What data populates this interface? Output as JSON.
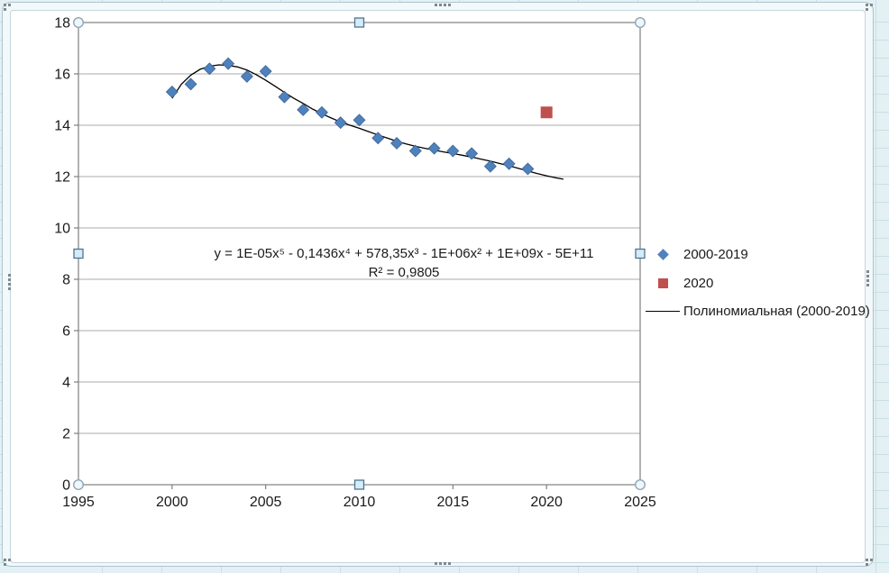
{
  "app": {
    "context": "spreadsheet-chart-object-selected",
    "sheet_background": "#e3f1f4",
    "sheet_grid_color": "#c9dfe5"
  },
  "chart_data": {
    "type": "scatter",
    "title": "",
    "xlabel": "",
    "ylabel": "",
    "xlim": [
      1995,
      2025
    ],
    "ylim": [
      0,
      18
    ],
    "x_ticks": [
      1995,
      2000,
      2005,
      2010,
      2015,
      2020,
      2025
    ],
    "y_ticks": [
      0,
      2,
      4,
      6,
      8,
      10,
      12,
      14,
      16,
      18
    ],
    "grid": "horizontal",
    "legend_position": "right",
    "series": [
      {
        "name": "2000-2019",
        "marker": "diamond",
        "color": "#4f81bd",
        "edge_color": "#3b6395",
        "x": [
          2000,
          2001,
          2002,
          2003,
          2004,
          2005,
          2006,
          2007,
          2008,
          2009,
          2010,
          2011,
          2012,
          2013,
          2014,
          2015,
          2016,
          2017,
          2018,
          2019
        ],
        "y": [
          15.3,
          15.6,
          16.2,
          16.4,
          15.9,
          16.1,
          15.1,
          14.6,
          14.5,
          14.1,
          14.2,
          13.5,
          13.3,
          13.0,
          13.1,
          13.0,
          12.9,
          12.4,
          12.5,
          12.3
        ]
      },
      {
        "name": "2020",
        "marker": "square",
        "color": "#c0504d",
        "edge_color": "#c0504d",
        "x": [
          2020
        ],
        "y": [
          14.5
        ]
      }
    ],
    "trendline": {
      "name": "Полиномиальная (2000-2019)",
      "color": "#000000",
      "x": [
        2000,
        2000.5,
        2001,
        2001.5,
        2002,
        2002.5,
        2003,
        2003.5,
        2004,
        2004.5,
        2005,
        2005.5,
        2006,
        2006.5,
        2007,
        2007.5,
        2008,
        2008.5,
        2009,
        2009.5,
        2010,
        2010.5,
        2011,
        2011.5,
        2012,
        2012.5,
        2013,
        2013.5,
        2014,
        2014.5,
        2015,
        2015.5,
        2016,
        2016.5,
        2017,
        2017.5,
        2018,
        2018.5,
        2019,
        2019.5,
        2020,
        2020.5,
        2020.9
      ],
      "y": [
        15.05,
        15.6,
        15.95,
        16.18,
        16.3,
        16.35,
        16.33,
        16.27,
        16.15,
        15.97,
        15.75,
        15.52,
        15.28,
        15.05,
        14.85,
        14.63,
        14.45,
        14.28,
        14.13,
        14.0,
        13.88,
        13.75,
        13.62,
        13.5,
        13.38,
        13.27,
        13.18,
        13.1,
        13.03,
        12.96,
        12.9,
        12.83,
        12.76,
        12.68,
        12.6,
        12.51,
        12.42,
        12.32,
        12.22,
        12.12,
        12.03,
        11.95,
        11.9
      ]
    },
    "annotation": {
      "equation_line": "y = 1E-05x⁵ - 0,1436x⁴ + 578,35x³ - 1E+06x² + 1E+09x - 5E+11",
      "r_squared_line": "R² = 0,9805"
    },
    "legend": [
      {
        "label": "2000-2019",
        "marker": "diamond",
        "color": "#4f81bd"
      },
      {
        "label": "2020",
        "marker": "square",
        "color": "#c0504d"
      },
      {
        "label": "Полиномиальная (2000-2019)",
        "marker": "line",
        "color": "#000000"
      }
    ],
    "colors": {
      "gridline": "#ababab",
      "plot_border": "#7f7f7f",
      "tick_label": "#1a1a1a",
      "handle_corner_fill": "#eef7fb",
      "handle_corner_stroke": "#8fa6b6",
      "handle_edge_fill": "#d4ebf8",
      "handle_edge_stroke": "#50748f"
    }
  }
}
